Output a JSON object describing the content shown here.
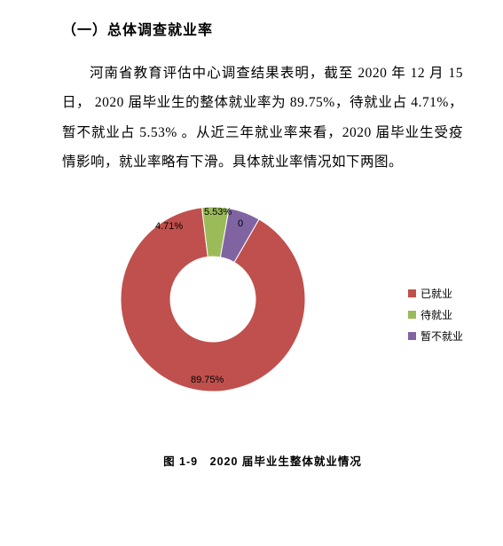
{
  "heading": "（一）总体调查就业率",
  "paragraph": "河南省教育评估中心调查结果表明，截至 2020 年 12 月 15 日， 2020 届毕业生的整体就业率为 89.75%，待就业占 4.71%，暂不就业占 5.53% 。从近三年就业率来看，2020 届毕业生受疫情影响，就业率略有下滑。具体就业率情况如下两图。",
  "chart": {
    "type": "donut",
    "outer_radius": 104,
    "inner_radius": 48,
    "background_color": "#ffffff",
    "slices": [
      {
        "label": "已就业",
        "value": 89.75,
        "pct_text": "89.75%",
        "color": "#c0504d"
      },
      {
        "label": "待就业",
        "value": 4.71,
        "pct_text": "4.71%",
        "color": "#9bbb59"
      },
      {
        "label": "暂不就业",
        "value": 5.53,
        "pct_text": "5.53%",
        "color": "#8064a2"
      }
    ],
    "zero_label": "0",
    "start_angle_deg": -60,
    "caption": "图 1-9　2020 届毕业生整体就业情况"
  }
}
